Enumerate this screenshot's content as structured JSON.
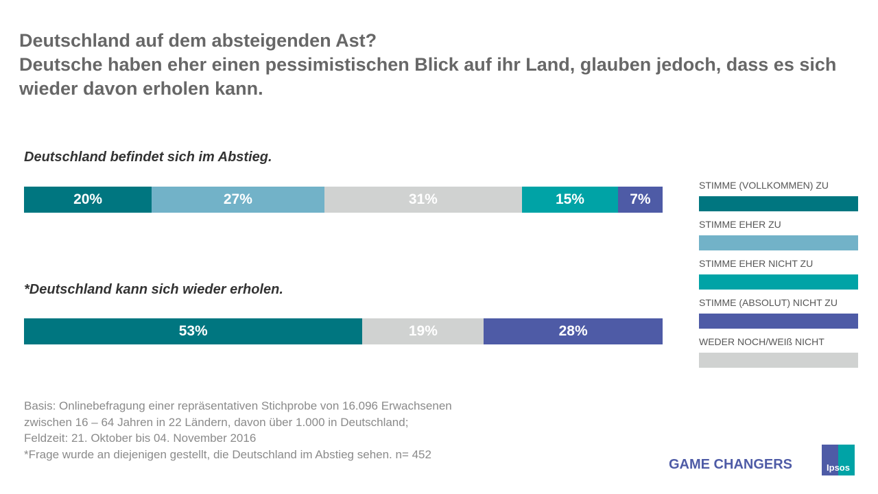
{
  "title": "Deutschland auf dem absteigenden Ast?",
  "subtitle": "Deutsche haben eher einen pessimistischen Blick auf ihr Land, glauben jedoch, dass es sich wieder davon erholen kann.",
  "colors": {
    "vollkommen_zu": "#007680",
    "eher_zu": "#72b2c8",
    "eher_nicht_zu": "#00a3a6",
    "absolut_nicht_zu": "#4e5ba6",
    "weder_noch": "#d0d2d1"
  },
  "chart_data": {
    "type": "bar",
    "stacked": true,
    "orientation": "horizontal",
    "legend_position": "right",
    "legend": [
      "STIMME (VOLLKOMMEN) ZU",
      "STIMME EHER ZU",
      "STIMME EHER NICHT ZU",
      "STIMME (ABSOLUT) NICHT ZU",
      "WEDER NOCH/WEIß NICHT"
    ],
    "bars": [
      {
        "label": "Deutschland befindet sich im Abstieg.",
        "segments": [
          {
            "value": 20,
            "text": "20%",
            "color": "#007680"
          },
          {
            "value": 27,
            "text": "27%",
            "color": "#72b2c8"
          },
          {
            "value": 31,
            "text": "31%",
            "color": "#d0d2d1"
          },
          {
            "value": 15,
            "text": "15%",
            "color": "#00a3a6"
          },
          {
            "value": 7,
            "text": "7%",
            "color": "#4e5ba6"
          }
        ]
      },
      {
        "label": "*Deutschland kann sich wieder erholen.",
        "segments": [
          {
            "value": 53,
            "text": "53%",
            "color": "#007680"
          },
          {
            "value": 19,
            "text": "19%",
            "color": "#d0d2d1"
          },
          {
            "value": 28,
            "text": "28%",
            "color": "#4e5ba6"
          }
        ]
      }
    ]
  },
  "notes": [
    "Basis: Onlinebefragung einer repräsentativen Stichprobe von 16.096 Erwachsenen",
    "zwischen 16 – 64 Jahren in 22 Ländern, davon über 1.000 in Deutschland;",
    "Feldzeit: 21. Oktober bis 04. November 2016",
    "*Frage wurde an diejenigen gestellt, die Deutschland im Abstieg sehen. n= 452"
  ],
  "footer": {
    "tagline": "GAME CHANGERS",
    "logo": "Ipsos"
  }
}
